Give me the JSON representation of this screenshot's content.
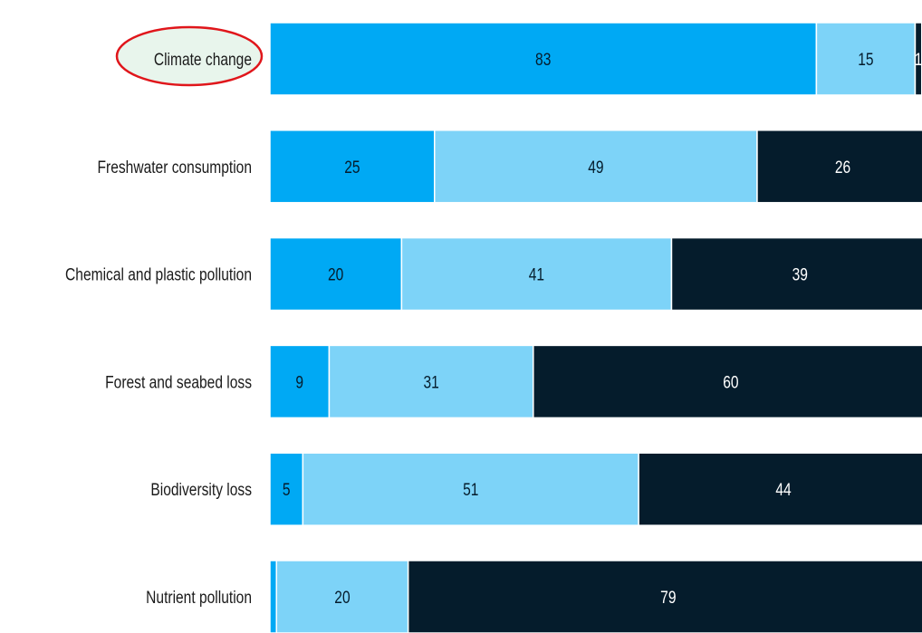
{
  "chart_data": {
    "type": "bar",
    "orientation": "horizontal",
    "stacked": true,
    "categories": [
      "Climate change",
      "Freshwater consumption",
      "Chemical and plastic pollution",
      "Forest and seabed loss",
      "Biodiversity loss",
      "Nutrient pollution"
    ],
    "series": [
      {
        "color": "#00a9f4",
        "values": [
          83,
          25,
          20,
          9,
          5,
          1
        ]
      },
      {
        "color": "#7dd3f8",
        "values": [
          15,
          49,
          41,
          31,
          51,
          20
        ]
      },
      {
        "color": "#051c2c",
        "values": [
          1,
          26,
          39,
          60,
          44,
          79
        ]
      }
    ],
    "xlim": [
      0,
      100
    ]
  }
}
